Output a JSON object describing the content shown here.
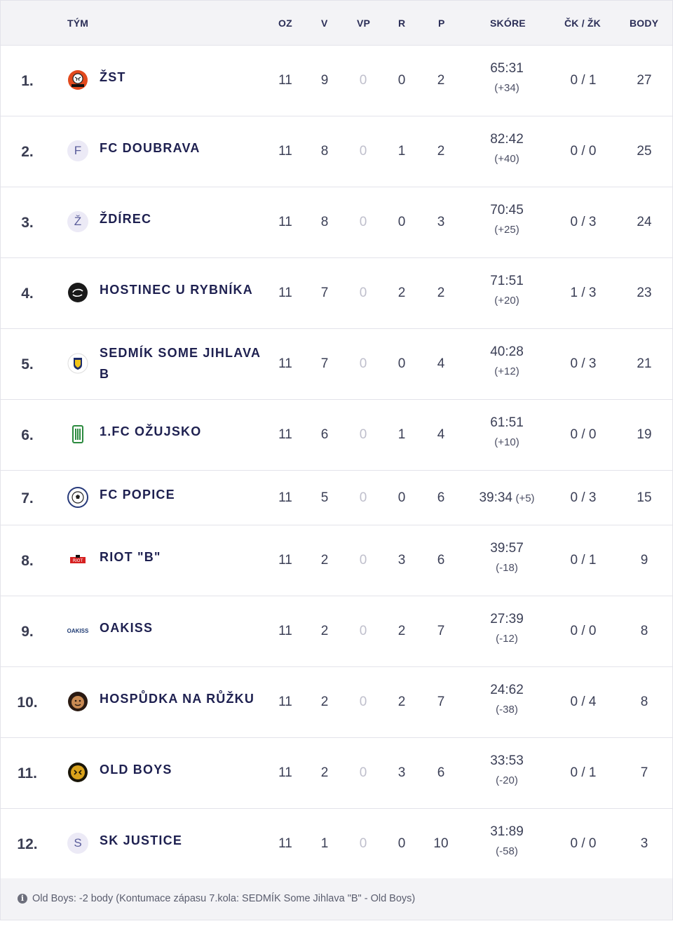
{
  "header": {
    "team": "TÝM",
    "oz": "OZ",
    "v": "V",
    "vp": "VP",
    "r": "R",
    "p": "P",
    "score": "SKÓRE",
    "cards": "ČK / ŽK",
    "points": "BODY"
  },
  "rows": [
    {
      "rank": "1.",
      "team": "ŽST",
      "logo": "zst-logo",
      "oz": "11",
      "v": "9",
      "vp": "0",
      "r": "0",
      "p": "2",
      "score": "65:31",
      "diff": "(+34)",
      "cards": "0 / 1",
      "points": "27"
    },
    {
      "rank": "2.",
      "team": "FC DOUBRAVA",
      "logo": "F",
      "oz": "11",
      "v": "8",
      "vp": "0",
      "r": "1",
      "p": "2",
      "score": "82:42",
      "diff": "(+40)",
      "cards": "0 / 0",
      "points": "25"
    },
    {
      "rank": "3.",
      "team": "ŽDÍREC",
      "logo": "Ž",
      "oz": "11",
      "v": "8",
      "vp": "0",
      "r": "0",
      "p": "3",
      "score": "70:45",
      "diff": "(+25)",
      "cards": "0 / 3",
      "points": "24"
    },
    {
      "rank": "4.",
      "team": "HOSTINEC U RYBNÍKA",
      "logo": "hostinec-logo",
      "oz": "11",
      "v": "7",
      "vp": "0",
      "r": "2",
      "p": "2",
      "score": "71:51",
      "diff": "(+20)",
      "cards": "1 / 3",
      "points": "23"
    },
    {
      "rank": "5.",
      "team": "SEDMÍK SOME JIHLAVA B",
      "logo": "sedmik-logo",
      "oz": "11",
      "v": "7",
      "vp": "0",
      "r": "0",
      "p": "4",
      "score": "40:28",
      "diff": "(+12)",
      "cards": "0 / 3",
      "points": "21"
    },
    {
      "rank": "6.",
      "team": "1.FC OŽUJSKO",
      "logo": "ozujsko-logo",
      "oz": "11",
      "v": "6",
      "vp": "0",
      "r": "1",
      "p": "4",
      "score": "61:51",
      "diff": "(+10)",
      "cards": "0 / 0",
      "points": "19"
    },
    {
      "rank": "7.",
      "team": "FC POPICE",
      "logo": "popice-logo",
      "oz": "11",
      "v": "5",
      "vp": "0",
      "r": "0",
      "p": "6",
      "score": "39:34",
      "diff": "(+5)",
      "cards": "0 / 3",
      "points": "15"
    },
    {
      "rank": "8.",
      "team": "RIOT \"B\"",
      "logo": "riot-logo",
      "oz": "11",
      "v": "2",
      "vp": "0",
      "r": "3",
      "p": "6",
      "score": "39:57",
      "diff": "(-18)",
      "cards": "0 / 1",
      "points": "9"
    },
    {
      "rank": "9.",
      "team": "OAKISS",
      "logo": "OAKISS",
      "oz": "11",
      "v": "2",
      "vp": "0",
      "r": "2",
      "p": "7",
      "score": "27:39",
      "diff": "(-12)",
      "cards": "0 / 0",
      "points": "8"
    },
    {
      "rank": "10.",
      "team": "HOSPŮDKA NA RŮŽKU",
      "logo": "hospudka-logo",
      "oz": "11",
      "v": "2",
      "vp": "0",
      "r": "2",
      "p": "7",
      "score": "24:62",
      "diff": "(-38)",
      "cards": "0 / 4",
      "points": "8"
    },
    {
      "rank": "11.",
      "team": "OLD BOYS",
      "logo": "oldboys-logo",
      "oz": "11",
      "v": "2",
      "vp": "0",
      "r": "3",
      "p": "6",
      "score": "33:53",
      "diff": "(-20)",
      "cards": "0 / 1",
      "points": "7"
    },
    {
      "rank": "12.",
      "team": "SK JUSTICE",
      "logo": "S",
      "oz": "11",
      "v": "1",
      "vp": "0",
      "r": "0",
      "p": "10",
      "score": "31:89",
      "diff": "(-58)",
      "cards": "0 / 0",
      "points": "3"
    }
  ],
  "footer": {
    "icon": "info-icon",
    "note": "Old Boys: -2 body (Kontumace zápasu 7.kola: SEDMÍK Some Jihlava \"B\" - Old Boys)"
  }
}
